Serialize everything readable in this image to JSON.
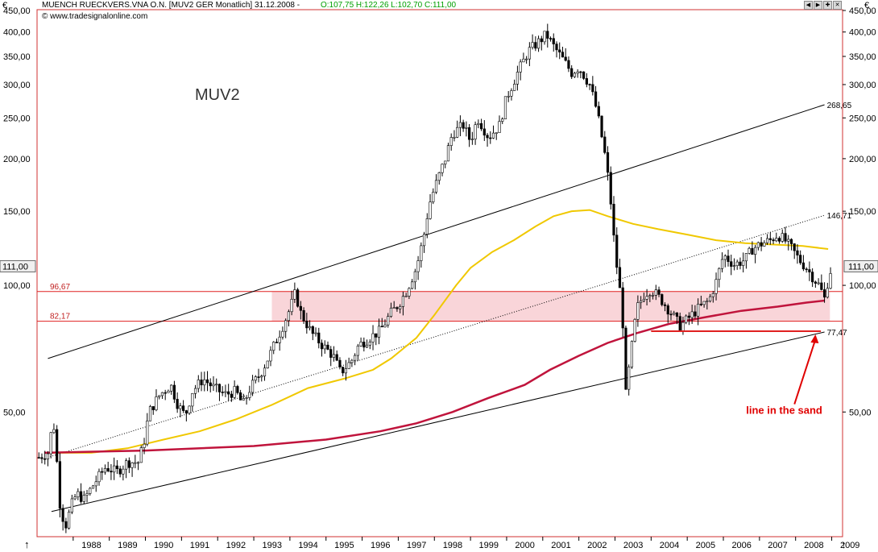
{
  "header": {
    "currency_left": "€",
    "currency_right": "€",
    "instrument": "MUENCH RUECKVERS.VNA O.N. [MUV2 GER  Monatlich] 31.12.2008 -",
    "ohlc": "O:107,75 H:122,26 L:102,70 C:111,00",
    "source": "© www.tradesignalonline.com",
    "arrow_up": "↑",
    "arrow_up_right": "↑"
  },
  "colors": {
    "candle": "#000000",
    "ma_yellow": "#f0c800",
    "ma_red": "#c0143c",
    "support_band": "#f9d5d9",
    "level_line": "#e02020",
    "frame": "#d03030",
    "annotation": "#e00000"
  },
  "chart_data": {
    "type": "candlestick",
    "title": "MUV2",
    "scale": "log",
    "ylim": [
      26,
      460
    ],
    "xlim": [
      1987.0,
      2009.3
    ],
    "y_ticks": [
      {
        "value": 450,
        "label": "450,00"
      },
      {
        "value": 400,
        "label": "400,00"
      },
      {
        "value": 350,
        "label": "350,00"
      },
      {
        "value": 300,
        "label": "300,00"
      },
      {
        "value": 250,
        "label": "250,00"
      },
      {
        "value": 200,
        "label": "200,00"
      },
      {
        "value": 150,
        "label": "150,00"
      },
      {
        "value": 100,
        "label": "100,00"
      },
      {
        "value": 50,
        "label": "50,00"
      }
    ],
    "x_ticks": [
      "1988",
      "1989",
      "1990",
      "1991",
      "1992",
      "1993",
      "1994",
      "1995",
      "1996",
      "1997",
      "1998",
      "1999",
      "2000",
      "2001",
      "2002",
      "2003",
      "2004",
      "2005",
      "2006",
      "2007",
      "2008",
      "2009"
    ],
    "last_price": {
      "value": 111,
      "label": "111,00"
    },
    "price_path": [
      [
        1987.05,
        39
      ],
      [
        1987.3,
        40
      ],
      [
        1987.45,
        48
      ],
      [
        1987.55,
        38
      ],
      [
        1987.65,
        29
      ],
      [
        1987.8,
        27
      ],
      [
        1987.95,
        30
      ],
      [
        1988.1,
        32
      ],
      [
        1988.3,
        31
      ],
      [
        1988.6,
        34
      ],
      [
        1988.9,
        37
      ],
      [
        1989.2,
        36
      ],
      [
        1989.5,
        38
      ],
      [
        1989.8,
        38
      ],
      [
        1989.95,
        42
      ],
      [
        1990.1,
        50
      ],
      [
        1990.4,
        55
      ],
      [
        1990.7,
        58
      ],
      [
        1990.9,
        52
      ],
      [
        1991.1,
        49
      ],
      [
        1991.3,
        56
      ],
      [
        1991.6,
        60
      ],
      [
        1991.9,
        57
      ],
      [
        1992.2,
        55
      ],
      [
        1992.5,
        56
      ],
      [
        1992.7,
        52
      ],
      [
        1992.9,
        57
      ],
      [
        1993.2,
        62
      ],
      [
        1993.5,
        70
      ],
      [
        1993.8,
        80
      ],
      [
        1994.0,
        88
      ],
      [
        1994.15,
        96
      ],
      [
        1994.3,
        86
      ],
      [
        1994.6,
        77
      ],
      [
        1994.9,
        72
      ],
      [
        1995.2,
        68
      ],
      [
        1995.4,
        62
      ],
      [
        1995.7,
        66
      ],
      [
        1995.9,
        72
      ],
      [
        1996.2,
        75
      ],
      [
        1996.5,
        78
      ],
      [
        1996.8,
        86
      ],
      [
        1997.0,
        90
      ],
      [
        1997.2,
        96
      ],
      [
        1997.5,
        110
      ],
      [
        1997.7,
        130
      ],
      [
        1997.85,
        155
      ],
      [
        1998.0,
        170
      ],
      [
        1998.3,
        200
      ],
      [
        1998.5,
        230
      ],
      [
        1998.8,
        240
      ],
      [
        1999.0,
        220
      ],
      [
        1999.2,
        250
      ],
      [
        1999.5,
        225
      ],
      [
        1999.8,
        240
      ],
      [
        2000.0,
        280
      ],
      [
        2000.3,
        320
      ],
      [
        2000.6,
        360
      ],
      [
        2000.9,
        380
      ],
      [
        2001.1,
        395
      ],
      [
        2001.3,
        370
      ],
      [
        2001.6,
        340
      ],
      [
        2001.8,
        320
      ],
      [
        2002.0,
        330
      ],
      [
        2002.3,
        300
      ],
      [
        2002.5,
        260
      ],
      [
        2002.7,
        210
      ],
      [
        2002.85,
        170
      ],
      [
        2003.0,
        120
      ],
      [
        2003.15,
        95
      ],
      [
        2003.25,
        75
      ],
      [
        2003.3,
        55
      ],
      [
        2003.45,
        70
      ],
      [
        2003.6,
        88
      ],
      [
        2003.8,
        95
      ],
      [
        2004.0,
        98
      ],
      [
        2004.3,
        92
      ],
      [
        2004.6,
        85
      ],
      [
        2004.8,
        80
      ],
      [
        2005.0,
        83
      ],
      [
        2005.3,
        88
      ],
      [
        2005.6,
        92
      ],
      [
        2005.8,
        102
      ],
      [
        2006.0,
        118
      ],
      [
        2006.3,
        112
      ],
      [
        2006.6,
        115
      ],
      [
        2006.8,
        122
      ],
      [
        2007.0,
        125
      ],
      [
        2007.3,
        128
      ],
      [
        2007.5,
        132
      ],
      [
        2007.7,
        128
      ],
      [
        2007.9,
        122
      ],
      [
        2008.1,
        115
      ],
      [
        2008.3,
        110
      ],
      [
        2008.5,
        104
      ],
      [
        2008.65,
        100
      ],
      [
        2008.8,
        93
      ],
      [
        2008.9,
        103
      ],
      [
        2009.0,
        111
      ]
    ],
    "ma_long_yellow": [
      [
        1987.2,
        40
      ],
      [
        1988.5,
        40
      ],
      [
        1989.5,
        41
      ],
      [
        1990.5,
        43
      ],
      [
        1991.5,
        45
      ],
      [
        1992.5,
        48
      ],
      [
        1993.5,
        52
      ],
      [
        1994.5,
        57
      ],
      [
        1995.5,
        60
      ],
      [
        1996.3,
        63
      ],
      [
        1996.8,
        67
      ],
      [
        1997.5,
        75
      ],
      [
        1998.0,
        85
      ],
      [
        1998.6,
        100
      ],
      [
        1999.0,
        110
      ],
      [
        1999.6,
        120
      ],
      [
        2000.2,
        128
      ],
      [
        2000.8,
        138
      ],
      [
        2001.3,
        146
      ],
      [
        2001.8,
        150
      ],
      [
        2002.3,
        151
      ],
      [
        2002.8,
        146
      ],
      [
        2003.5,
        140
      ],
      [
        2004.2,
        136
      ],
      [
        2005.0,
        132
      ],
      [
        2005.8,
        128
      ],
      [
        2006.6,
        126
      ],
      [
        2007.4,
        125
      ],
      [
        2008.2,
        124
      ],
      [
        2008.9,
        122
      ]
    ],
    "ma_long_red": [
      [
        1987.2,
        40
      ],
      [
        1990.0,
        40.5
      ],
      [
        1993.0,
        41.5
      ],
      [
        1995.0,
        43
      ],
      [
        1996.5,
        45
      ],
      [
        1997.5,
        47
      ],
      [
        1998.5,
        50
      ],
      [
        1999.5,
        54
      ],
      [
        2000.5,
        58
      ],
      [
        2001.2,
        63
      ],
      [
        2002.0,
        68
      ],
      [
        2002.8,
        73
      ],
      [
        2003.6,
        77
      ],
      [
        2004.5,
        81
      ],
      [
        2005.5,
        84
      ],
      [
        2006.5,
        87
      ],
      [
        2007.5,
        89
      ],
      [
        2008.3,
        91
      ],
      [
        2008.8,
        92
      ]
    ],
    "trend_lines": [
      {
        "from": [
          1987.3,
          67
        ],
        "to": [
          2008.8,
          268.65
        ],
        "label": "268,65"
      },
      {
        "from": [
          1987.4,
          29
        ],
        "to": [
          2008.8,
          77.47
        ],
        "label": "77,47"
      },
      {
        "from": [
          1987.3,
          39
        ],
        "to": [
          2008.8,
          146.71
        ],
        "label": "146,71"
      }
    ],
    "levels": [
      {
        "value": 96.67,
        "label": "96,67"
      },
      {
        "value": 82.17,
        "label": "82,17"
      }
    ],
    "support_band": {
      "from": 1993.5,
      "to": 2008.95,
      "low": 82.17,
      "high": 96.67
    },
    "sand_line": {
      "from": 2004.0,
      "to": 2008.7,
      "value": 77.8
    },
    "annotation": {
      "text": "line in the sand",
      "x": 2007.7,
      "y": 49.5
    }
  }
}
